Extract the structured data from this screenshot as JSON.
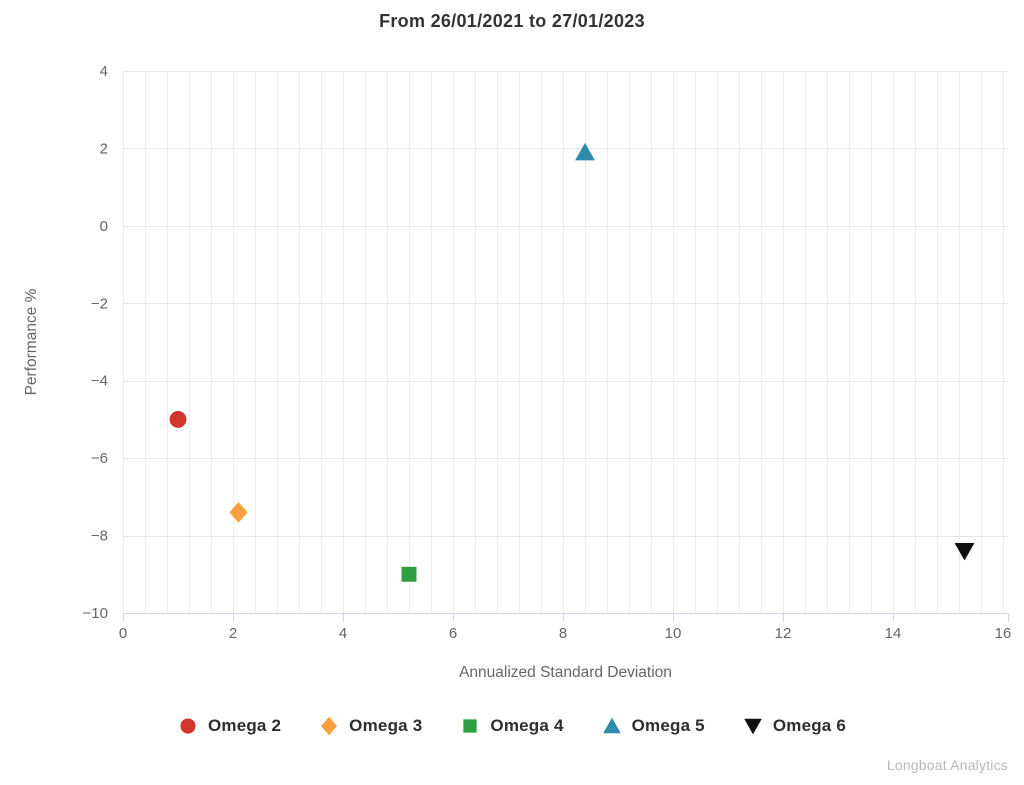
{
  "header": {
    "title": "From 26/01/2021 to 27/01/2023"
  },
  "branding": {
    "watermark": "Longboat Analytics"
  },
  "chart_data": {
    "type": "scatter",
    "title": "From 26/01/2021 to 27/01/2023",
    "xlabel": "Annualized Standard Deviation",
    "ylabel": "Performance %",
    "xlim": [
      0,
      16
    ],
    "ylim": [
      -10,
      4
    ],
    "x_ticks": [
      0,
      2,
      4,
      6,
      8,
      10,
      12,
      14,
      16
    ],
    "y_ticks": [
      4,
      2,
      0,
      -2,
      -4,
      -6,
      -8,
      -10
    ],
    "x_minor_tick_interval": 0.4,
    "grid": true,
    "legend_position": "bottom-center",
    "series": [
      {
        "name": "Omega 2",
        "marker": "circle",
        "color": "#d2352e",
        "points": [
          {
            "x": 1.0,
            "y": -5.0
          }
        ]
      },
      {
        "name": "Omega 3",
        "marker": "diamond",
        "color": "#f6a13e",
        "points": [
          {
            "x": 2.1,
            "y": -7.4
          }
        ]
      },
      {
        "name": "Omega 4",
        "marker": "square",
        "color": "#2f9e41",
        "points": [
          {
            "x": 5.2,
            "y": -9.0
          }
        ]
      },
      {
        "name": "Omega 5",
        "marker": "triangle-up",
        "color": "#2d8bab",
        "points": [
          {
            "x": 8.4,
            "y": 1.9
          }
        ]
      },
      {
        "name": "Omega 6",
        "marker": "triangle-down",
        "color": "#101010",
        "points": [
          {
            "x": 15.3,
            "y": -8.4
          }
        ]
      }
    ],
    "colors": {
      "background": "#ffffff",
      "gridline_major": "#e6e6e6",
      "gridline_minor": "#ededed",
      "axis_line": "#ccd6eb",
      "tick_label": "#666666",
      "axis_title": "#666666",
      "title_text": "#333333",
      "legend_text": "#2e2e2e",
      "watermark": "#b8b8b8"
    }
  }
}
